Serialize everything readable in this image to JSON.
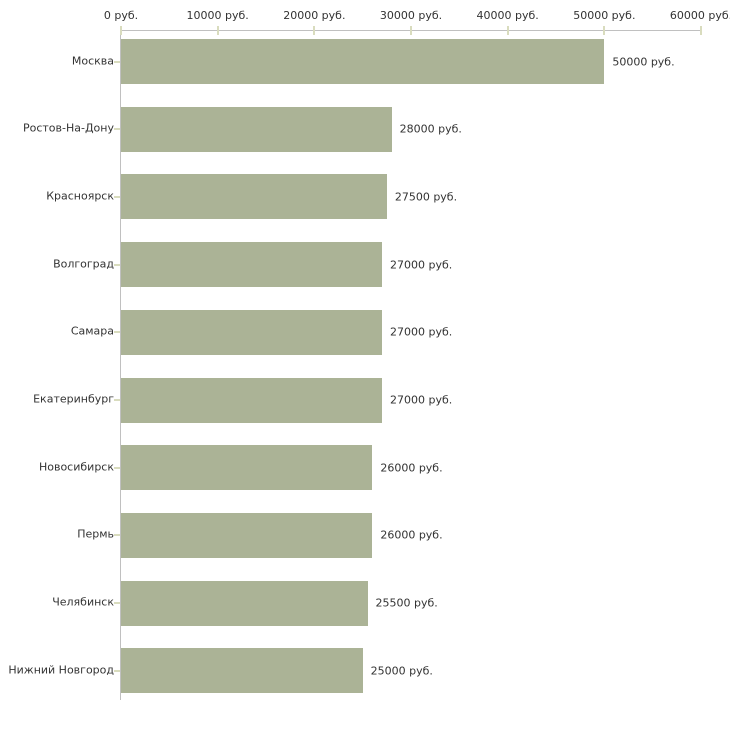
{
  "chart_data": {
    "type": "bar",
    "orientation": "horizontal",
    "title": "",
    "xlabel": "",
    "ylabel": "",
    "unit": "руб.",
    "xlim": [
      0,
      60000
    ],
    "x_ticks": [
      0,
      10000,
      20000,
      30000,
      40000,
      50000,
      60000
    ],
    "x_tick_labels": [
      "0 руб.",
      "10000 руб.",
      "20000 руб.",
      "30000 руб.",
      "40000 руб.",
      "50000 руб.",
      "60000 руб."
    ],
    "categories": [
      "Москва",
      "Ростов-На-Дону",
      "Красноярск",
      "Волгоград",
      "Самара",
      "Екатеринбург",
      "Новосибирск",
      "Пермь",
      "Челябинск",
      "Нижний Новгород"
    ],
    "values": [
      50000,
      28000,
      27500,
      27000,
      27000,
      27000,
      26000,
      26000,
      25500,
      25000
    ],
    "value_labels": [
      "50000 руб.",
      "28000 руб.",
      "27500 руб.",
      "27000 руб.",
      "27000 руб.",
      "27000 руб.",
      "26000 руб.",
      "26000 руб.",
      "25500 руб.",
      "25000 руб."
    ],
    "grid": false,
    "legend": false,
    "bar_color": "#abb396",
    "axis_color": "#c0c0c0",
    "tick_color": "#d9dcbe",
    "text_color": "#333333"
  }
}
